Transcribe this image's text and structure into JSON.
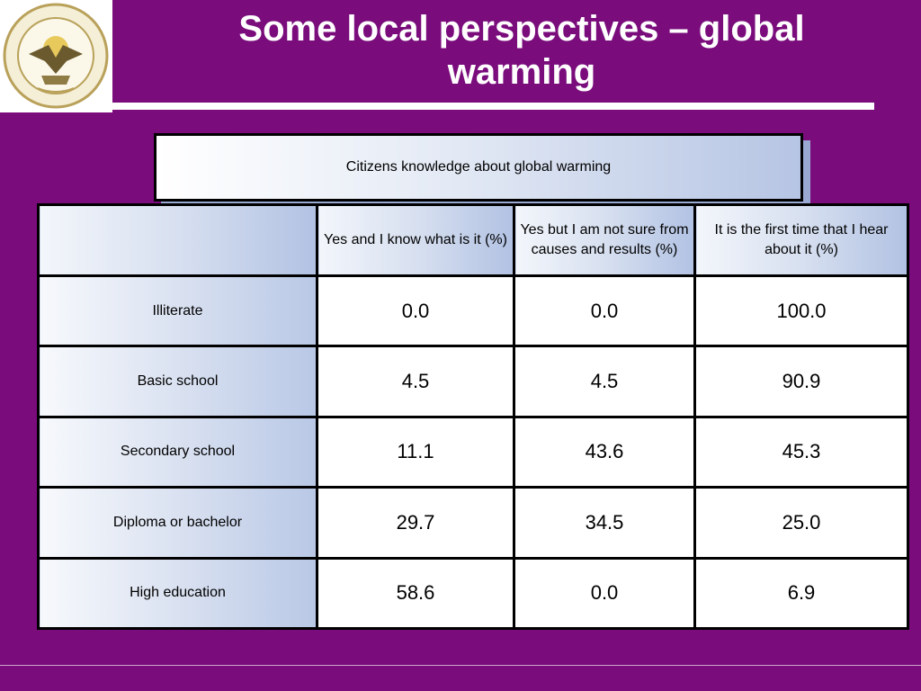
{
  "slide": {
    "title": "Some local perspectives – global warming",
    "logo_name": "university-seal"
  },
  "table": {
    "caption": "Citizens knowledge about global warming",
    "columns": [
      "",
      "Yes and I know what is it (%)",
      "Yes but I am not sure from causes and results (%)",
      "It is the first time that I hear about it (%)"
    ],
    "rows": [
      {
        "label": "Illiterate",
        "values": [
          "0.0",
          "0.0",
          "100.0"
        ]
      },
      {
        "label": "Basic school",
        "values": [
          "4.5",
          "4.5",
          "90.9"
        ]
      },
      {
        "label": "Secondary school",
        "values": [
          "11.1",
          "43.6",
          "45.3"
        ]
      },
      {
        "label": "Diploma or bachelor",
        "values": [
          "29.7",
          "34.5",
          "25.0"
        ]
      },
      {
        "label": "High education",
        "values": [
          "58.6",
          "0.0",
          "6.9"
        ]
      }
    ]
  },
  "colors": {
    "background": "#7a0c7c",
    "title_text": "#ffffff",
    "header_gradient_end": "#b2c2e3"
  }
}
